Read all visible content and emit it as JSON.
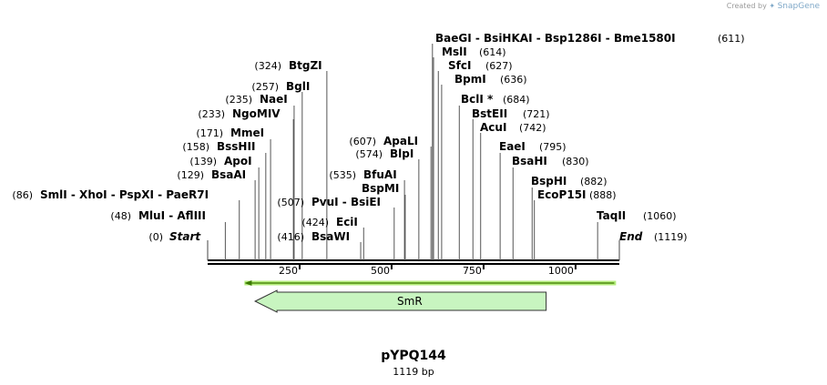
{
  "credit": {
    "prefix": "Created by",
    "brand": "SnapGene",
    "icon": "snapgene-logo-icon"
  },
  "plasmid": {
    "name": "pYPQ144",
    "length_label": "1119 bp",
    "length_bp": 1119
  },
  "axis": {
    "start_label": "Start",
    "start_pos": "(0)",
    "end_label": "End",
    "end_pos": "(1119)",
    "ticks": [
      {
        "label": "250",
        "bp": 250
      },
      {
        "label": "500",
        "bp": 500
      },
      {
        "label": "750",
        "bp": 750
      },
      {
        "label": "1000",
        "bp": 1000
      }
    ]
  },
  "features": [
    {
      "name": "",
      "type": "primer-arrow",
      "direction": "left",
      "start_bp": 100,
      "end_bp": 1110,
      "color": "#b4ec7c",
      "stroke": "#3c7a00"
    },
    {
      "name": "SmR",
      "type": "cds",
      "direction": "left",
      "start_bp": 129,
      "end_bp": 920,
      "color": "#c8f5c0",
      "stroke": "#333333"
    }
  ],
  "sites": [
    {
      "pos": "(48)",
      "name": "MluI  -  AflIII",
      "bp": 48
    },
    {
      "pos": "(86)",
      "name": "SmlI   -  XhoI   -  PspXI   -  PaeR7I",
      "bp": 86
    },
    {
      "pos": "(129)",
      "name": "BsaAI",
      "bp": 129
    },
    {
      "pos": "(139)",
      "name": "ApoI",
      "bp": 139
    },
    {
      "pos": "(158)",
      "name": "BssHII",
      "bp": 158
    },
    {
      "pos": "(171)",
      "name": "MmeI",
      "bp": 171
    },
    {
      "pos": "(233)",
      "name": "NgoMIV",
      "bp": 233
    },
    {
      "pos": "(235)",
      "name": "NaeI",
      "bp": 235
    },
    {
      "pos": "(257)",
      "name": "BglI",
      "bp": 257
    },
    {
      "pos": "(324)",
      "name": "BtgZI",
      "bp": 324
    },
    {
      "pos": "(416)",
      "name": "BsaWI",
      "bp": 416
    },
    {
      "pos": "(424)",
      "name": "EciI",
      "bp": 424
    },
    {
      "pos": "(507)",
      "name": "PvuI  -  BsiEI",
      "bp": 507
    },
    {
      "pos": "",
      "name": "BspMI",
      "bp": 537
    },
    {
      "pos": "(535)",
      "name": "BfuAI",
      "bp": 535
    },
    {
      "pos": "(574)",
      "name": "BlpI",
      "bp": 574
    },
    {
      "pos": "(607)",
      "name": "ApaLI",
      "bp": 607
    },
    {
      "pos": "(611)",
      "name": "BaeGI   -  BsiHKAI   -  Bsp1286I   -  Bme1580I",
      "bp": 611
    },
    {
      "pos": "(614)",
      "name": "MslI",
      "bp": 614
    },
    {
      "pos": "(627)",
      "name": "SfcI",
      "bp": 627
    },
    {
      "pos": "(636)",
      "name": "BpmI",
      "bp": 636
    },
    {
      "pos": "(684)",
      "name": "BclI *",
      "bp": 684
    },
    {
      "pos": "(721)",
      "name": "BstEII",
      "bp": 721
    },
    {
      "pos": "(742)",
      "name": "AcuI",
      "bp": 742
    },
    {
      "pos": "(795)",
      "name": "EaeI",
      "bp": 795
    },
    {
      "pos": "(830)",
      "name": "BsaHI",
      "bp": 830
    },
    {
      "pos": "(882)",
      "name": "BspHI",
      "bp": 882
    },
    {
      "pos": "(888)",
      "name": "EcoP15I",
      "bp": 888
    },
    {
      "pos": "(1060)",
      "name": "TaqII",
      "bp": 1060
    }
  ]
}
